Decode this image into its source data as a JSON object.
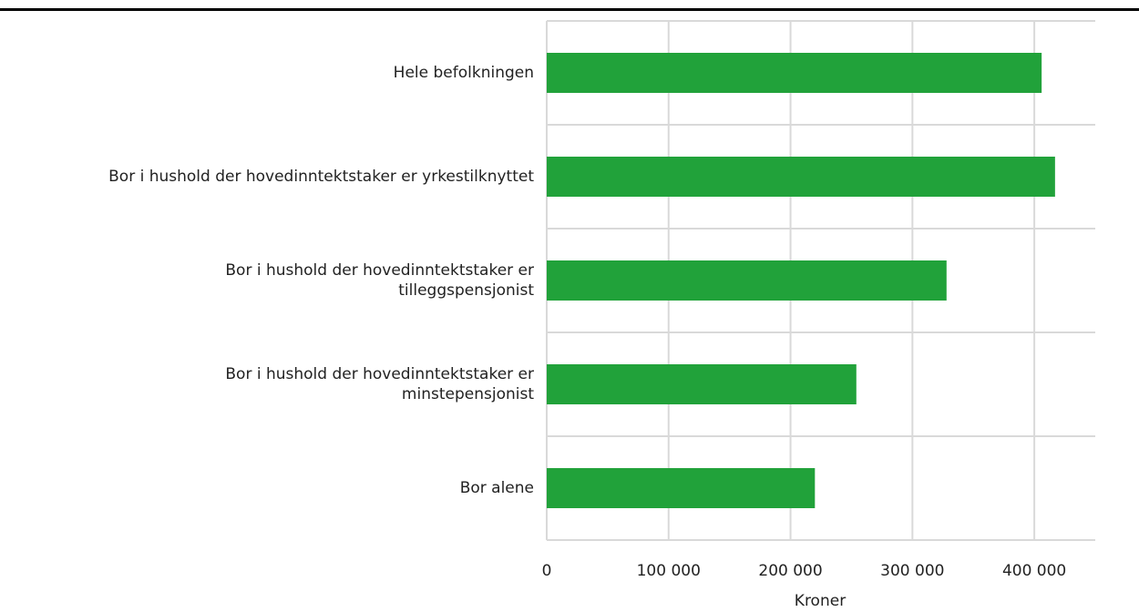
{
  "chart_data": {
    "type": "bar",
    "orientation": "horizontal",
    "categories": [
      "Hele befolkningen",
      "Bor i hushold der hovedinntektstaker er yrkestilknyttet",
      "Bor i hushold der hovedinntektstaker er\ntilleggspensjonist",
      "Bor i hushold der hovedinntektstaker er\nminstepensjonist",
      "Bor alene"
    ],
    "values": [
      406000,
      417000,
      328000,
      254000,
      220000
    ],
    "color": "#21a23a",
    "x_label": "Kroner",
    "xlim": [
      0,
      450000
    ],
    "xticks": [
      0,
      {
        "value": 100000,
        "label": "100 000"
      },
      {
        "value": 200000,
        "label": "200 000"
      },
      {
        "value": 300000,
        "label": "300 000"
      },
      {
        "value": 400000,
        "label": "400 000"
      }
    ],
    "grid": true
  }
}
